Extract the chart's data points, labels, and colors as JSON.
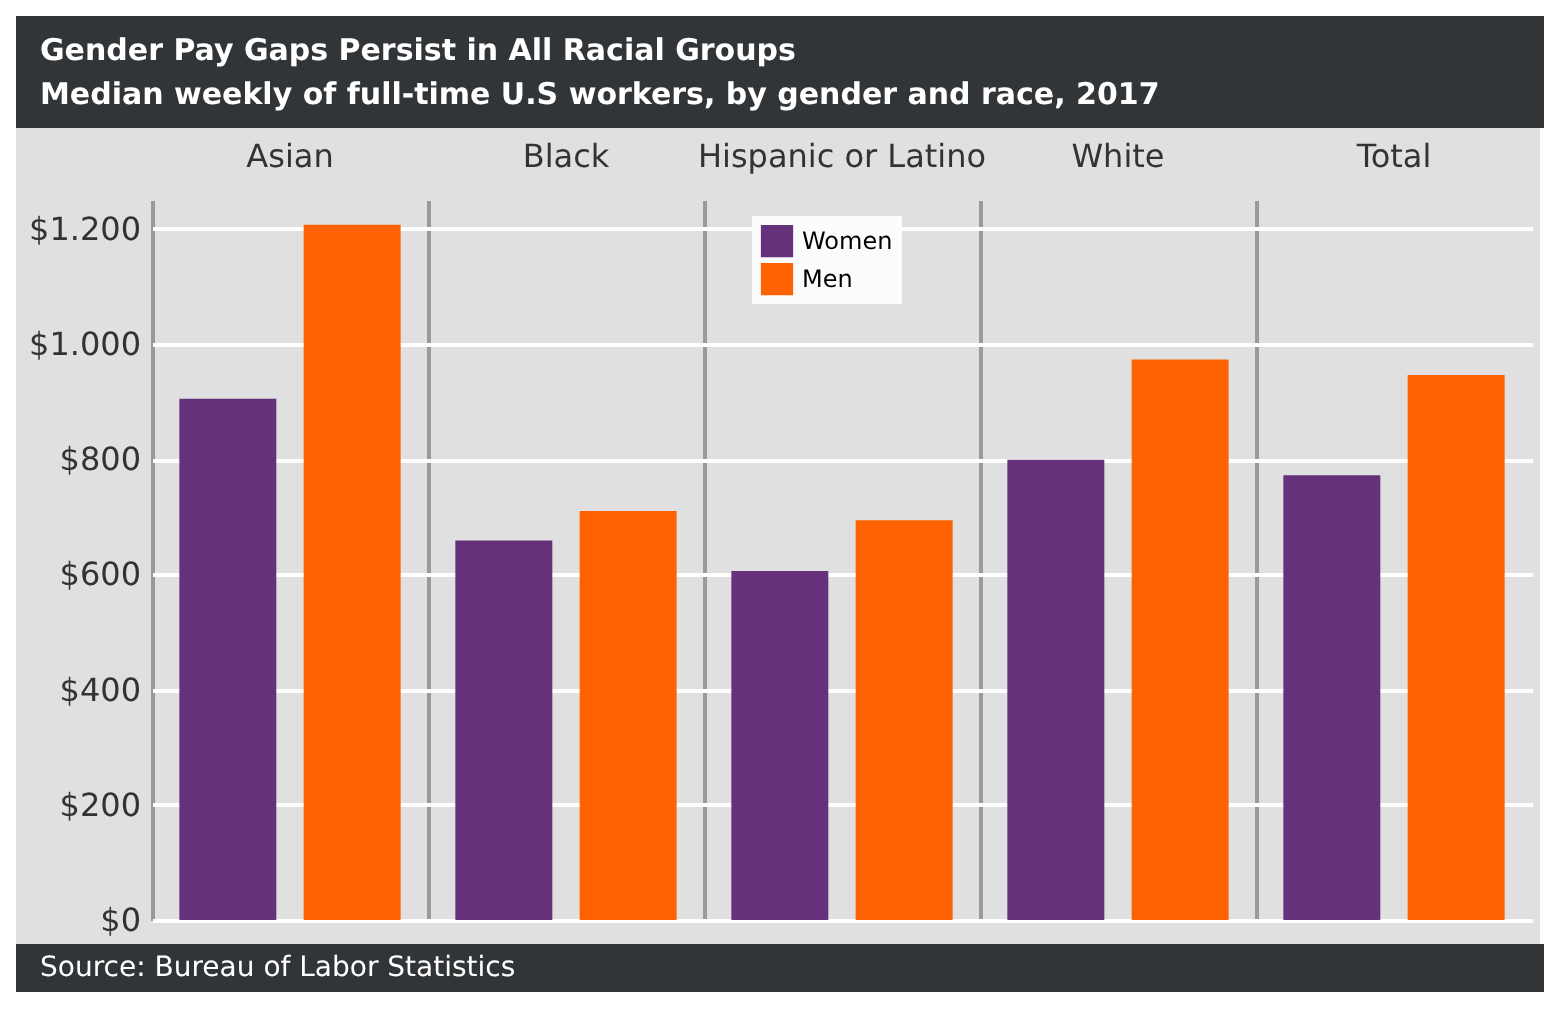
{
  "chart_data": {
    "type": "bar",
    "title": "Gender Pay Gaps Persist in All Racial Groups",
    "subtitle": "Median weekly of full-time U.S workers, by gender and race, 2017",
    "annotations": [
      "Source: Bureau of Labor Statistics"
    ],
    "categories": [
      "Asian",
      "Black",
      "Hispanic or Latino",
      "White",
      "Total"
    ],
    "series": [
      {
        "name": "Women",
        "color": "#64317a",
        "values": [
          905,
          659,
          606,
          799,
          772
        ]
      },
      {
        "name": "Men",
        "color": "#ff6200",
        "values": [
          1207,
          710,
          694,
          973,
          946
        ]
      }
    ],
    "ylim": [
      0,
      1250
    ],
    "yticks": [
      {
        "value": 0,
        "label": "$0"
      },
      {
        "value": 200,
        "label": "$200"
      },
      {
        "value": 400,
        "label": "$400"
      },
      {
        "value": 600,
        "label": "$600"
      },
      {
        "value": 800,
        "label": "$800"
      },
      {
        "value": 1000,
        "label": "$1.000"
      },
      {
        "value": 1200,
        "label": "$1.200"
      }
    ],
    "grid": "y",
    "legend": "top"
  }
}
